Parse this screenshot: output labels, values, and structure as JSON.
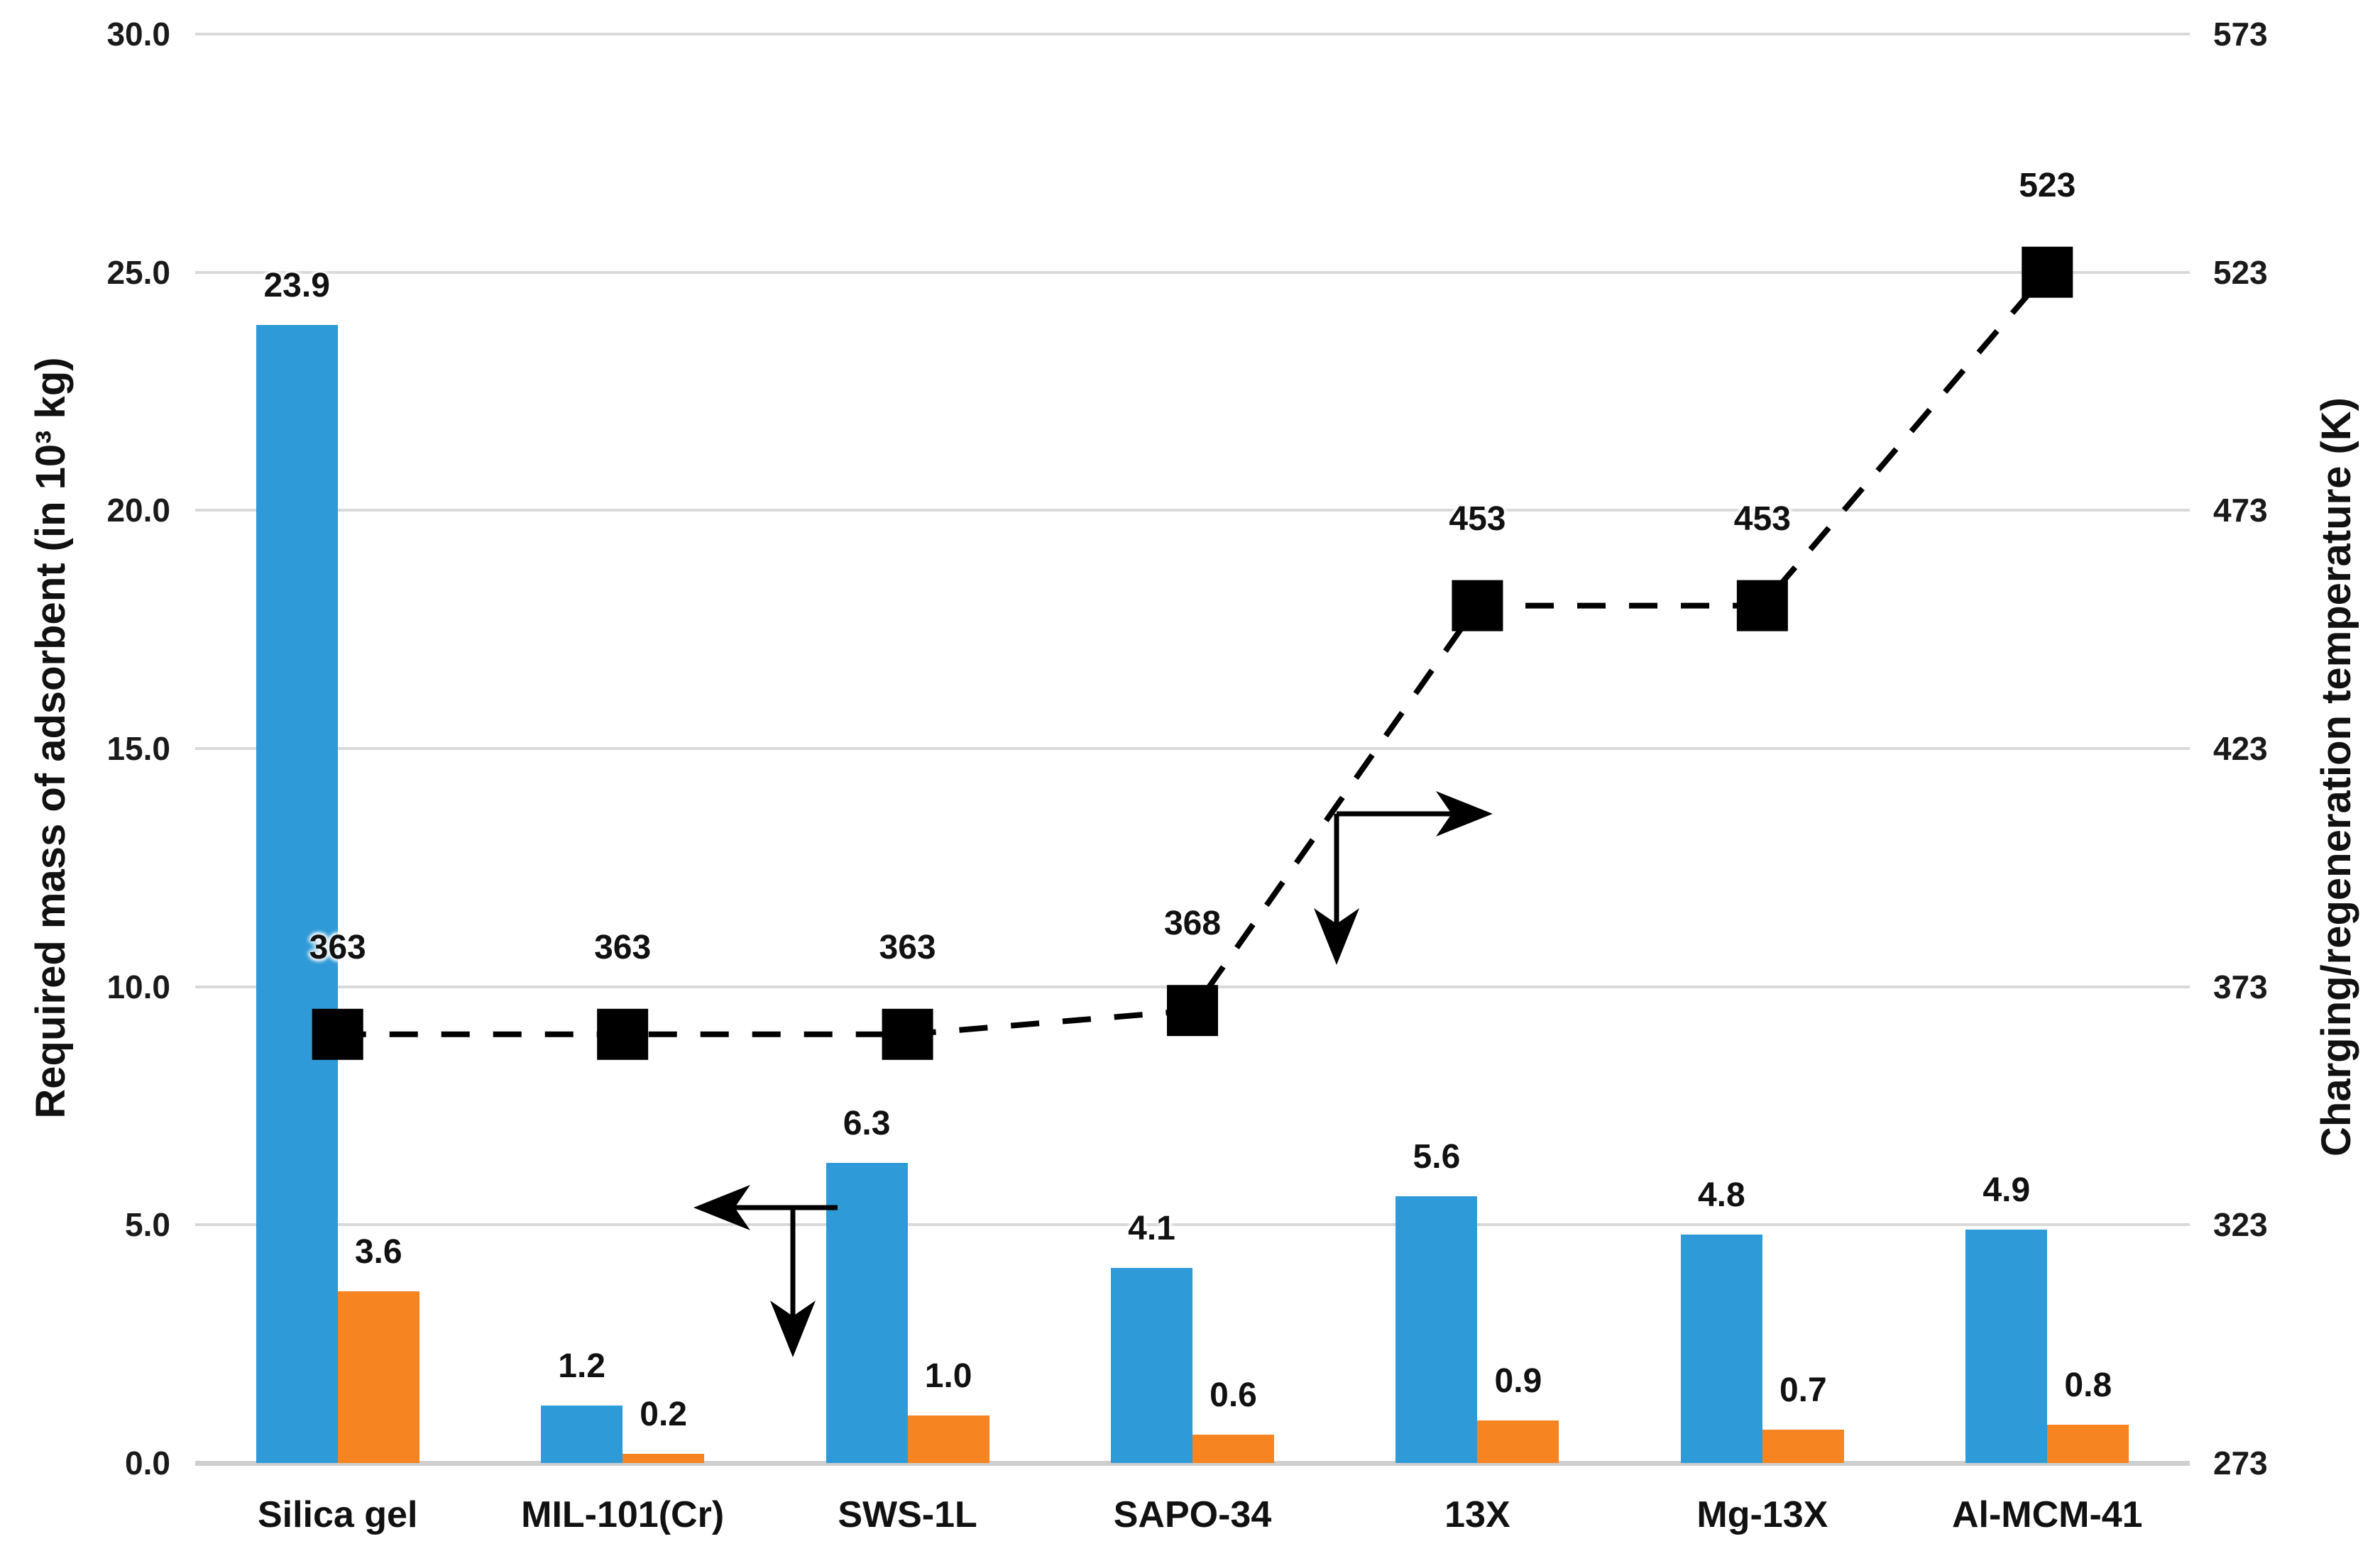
{
  "chart_data": {
    "type": "bar",
    "subtype": "grouped-bars-with-dashed-line-markers",
    "categories": [
      "Silica gel",
      "MIL-101(Cr)",
      "SWS-1L",
      "SAPO-34",
      "13X",
      "Mg-13X",
      "Al-MCM-41"
    ],
    "series": [
      {
        "name": "required-mass-bars-blue",
        "kind": "bar",
        "axis": "left",
        "color": "#2E9AD7",
        "values": [
          23.9,
          1.2,
          6.3,
          4.1,
          5.6,
          4.8,
          4.9
        ],
        "labels": [
          "23.9",
          "1.2",
          "6.3",
          "4.1",
          "5.6",
          "4.8",
          "4.9"
        ]
      },
      {
        "name": "required-mass-bars-orange",
        "kind": "bar",
        "axis": "left",
        "color": "#F68420",
        "values": [
          3.6,
          0.2,
          1.0,
          0.6,
          0.9,
          0.7,
          0.8
        ],
        "labels": [
          "3.6",
          "0.2",
          "1.0",
          "0.6",
          "0.9",
          "0.7",
          "0.8"
        ]
      },
      {
        "name": "charging-regeneration-temperature",
        "kind": "line",
        "axis": "right",
        "color": "#000000",
        "line_style": "dashed",
        "marker": "filled-square",
        "values": [
          363,
          363,
          363,
          368,
          453,
          453,
          523
        ],
        "labels": [
          "363",
          "363",
          "363",
          "368",
          "453",
          "453",
          "523"
        ]
      }
    ],
    "left_axis": {
      "title": "Required mass of adsorbent (in 10³ kg)",
      "tick_labels": [
        "30.0",
        "25.0",
        "20.0",
        "15.0",
        "10.0",
        "5.0",
        "0.0"
      ],
      "min": 0,
      "max": 30
    },
    "right_axis": {
      "title": "Charging/regeneration temperature (K)",
      "tick_labels": [
        "573",
        "523",
        "473",
        "423",
        "373",
        "323",
        "273"
      ],
      "min": 273,
      "max": 573
    },
    "grid": true,
    "legend_position": "none",
    "annotations": [
      {
        "name": "bars-to-left-axis-pointer",
        "shape": "elbow-arrows-left-and-down",
        "near_category": "SWS-1L"
      },
      {
        "name": "line-to-right-axis-pointer",
        "shape": "elbow-arrows-right-and-down",
        "near_category": "13X"
      }
    ],
    "colors": {
      "grid": "#d9d9d9",
      "axis_line": "#cfcfcf",
      "text": "#111111",
      "background": "#ffffff"
    }
  }
}
